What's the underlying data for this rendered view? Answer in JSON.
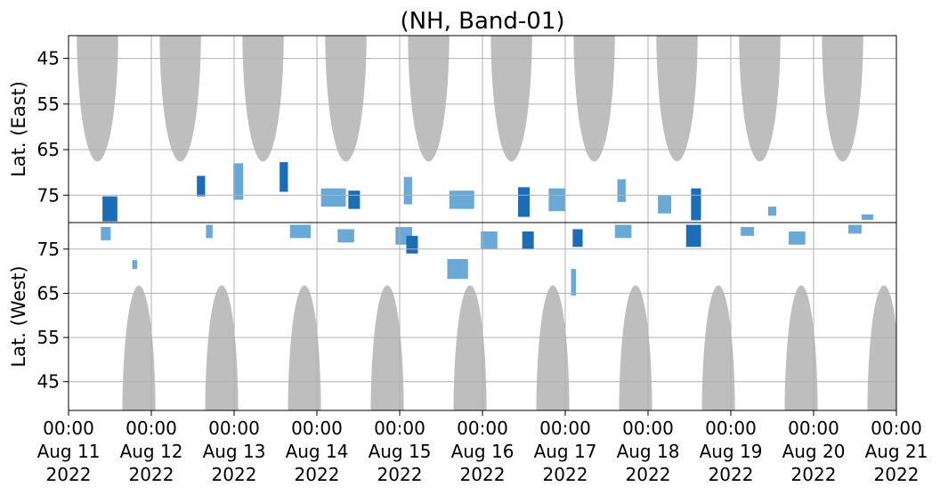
{
  "chart_data": {
    "type": "heatmap",
    "title": "(NH, Band-01)",
    "x_ticks": [
      {
        "time": "00:00",
        "date": "Aug 11",
        "year": "2022"
      },
      {
        "time": "00:00",
        "date": "Aug 12",
        "year": "2022"
      },
      {
        "time": "00:00",
        "date": "Aug 13",
        "year": "2022"
      },
      {
        "time": "00:00",
        "date": "Aug 14",
        "year": "2022"
      },
      {
        "time": "00:00",
        "date": "Aug 15",
        "year": "2022"
      },
      {
        "time": "00:00",
        "date": "Aug 16",
        "year": "2022"
      },
      {
        "time": "00:00",
        "date": "Aug 17",
        "year": "2022"
      },
      {
        "time": "00:00",
        "date": "Aug 18",
        "year": "2022"
      },
      {
        "time": "00:00",
        "date": "Aug 19",
        "year": "2022"
      },
      {
        "time": "00:00",
        "date": "Aug 20",
        "year": "2022"
      },
      {
        "time": "00:00",
        "date": "Aug 21",
        "year": "2022"
      }
    ],
    "grid": true,
    "colors": {
      "coverage_gap": "#bebebe",
      "light": "#6aa9d6",
      "dark": "#1d6db6",
      "grid": "#b0b0b0"
    },
    "panels": [
      {
        "name": "east",
        "ylabel": "Lat. (East)",
        "ylim": [
          40,
          81
        ],
        "y_ticks": [
          45,
          55,
          65,
          75
        ],
        "direction": "down",
        "gaps": [
          {
            "center_day": 0.35,
            "min_lat": 67.6,
            "width_days": 0.5
          },
          {
            "center_day": 1.35,
            "min_lat": 67.6,
            "width_days": 0.5
          },
          {
            "center_day": 2.35,
            "min_lat": 67.6,
            "width_days": 0.5
          },
          {
            "center_day": 3.35,
            "min_lat": 67.6,
            "width_days": 0.5
          },
          {
            "center_day": 4.35,
            "min_lat": 67.6,
            "width_days": 0.5
          },
          {
            "center_day": 5.35,
            "min_lat": 67.6,
            "width_days": 0.5
          },
          {
            "center_day": 6.35,
            "min_lat": 67.6,
            "width_days": 0.5
          },
          {
            "center_day": 7.35,
            "min_lat": 67.6,
            "width_days": 0.5
          },
          {
            "center_day": 8.35,
            "min_lat": 67.6,
            "width_days": 0.5
          },
          {
            "center_day": 9.35,
            "min_lat": 67.6,
            "width_days": 0.5
          }
        ],
        "events": [
          {
            "day": 0.5,
            "lat": 78.0,
            "w_days": 0.18,
            "h_lat": 5.5,
            "shade": "dark"
          },
          {
            "day": 1.6,
            "lat": 73.0,
            "w_days": 0.1,
            "h_lat": 4.5,
            "shade": "dark"
          },
          {
            "day": 2.05,
            "lat": 72.0,
            "w_days": 0.12,
            "h_lat": 8.0,
            "shade": "light"
          },
          {
            "day": 2.6,
            "lat": 71.0,
            "w_days": 0.1,
            "h_lat": 6.5,
            "shade": "dark"
          },
          {
            "day": 3.2,
            "lat": 75.5,
            "w_days": 0.3,
            "h_lat": 4.0,
            "shade": "light"
          },
          {
            "day": 3.45,
            "lat": 76.0,
            "w_days": 0.14,
            "h_lat": 4.0,
            "shade": "dark"
          },
          {
            "day": 4.1,
            "lat": 74.0,
            "w_days": 0.1,
            "h_lat": 6.0,
            "shade": "light"
          },
          {
            "day": 4.75,
            "lat": 76.0,
            "w_days": 0.3,
            "h_lat": 4.0,
            "shade": "light"
          },
          {
            "day": 5.5,
            "lat": 76.5,
            "w_days": 0.14,
            "h_lat": 6.5,
            "shade": "dark"
          },
          {
            "day": 5.9,
            "lat": 76.0,
            "w_days": 0.2,
            "h_lat": 5.0,
            "shade": "light"
          },
          {
            "day": 6.68,
            "lat": 74.0,
            "w_days": 0.1,
            "h_lat": 5.0,
            "shade": "light"
          },
          {
            "day": 7.2,
            "lat": 77.0,
            "w_days": 0.16,
            "h_lat": 4.0,
            "shade": "light"
          },
          {
            "day": 7.58,
            "lat": 77.0,
            "w_days": 0.12,
            "h_lat": 7.0,
            "shade": "dark"
          },
          {
            "day": 8.5,
            "lat": 78.5,
            "w_days": 0.1,
            "h_lat": 2.0,
            "shade": "light"
          },
          {
            "day": 9.65,
            "lat": 79.8,
            "w_days": 0.14,
            "h_lat": 1.2,
            "shade": "light"
          }
        ]
      },
      {
        "name": "west",
        "ylabel": "Lat. (West)",
        "ylim": [
          38.5,
          81
        ],
        "y_ticks": [
          45,
          55,
          65,
          75
        ],
        "direction": "up",
        "gaps": [
          {
            "center_day": 0.85,
            "min_lat": 66.8,
            "width_days": 0.4
          },
          {
            "center_day": 1.85,
            "min_lat": 66.8,
            "width_days": 0.4
          },
          {
            "center_day": 2.85,
            "min_lat": 66.8,
            "width_days": 0.4
          },
          {
            "center_day": 3.85,
            "min_lat": 66.8,
            "width_days": 0.4
          },
          {
            "center_day": 4.85,
            "min_lat": 66.8,
            "width_days": 0.4
          },
          {
            "center_day": 5.85,
            "min_lat": 66.8,
            "width_days": 0.4
          },
          {
            "center_day": 6.85,
            "min_lat": 66.8,
            "width_days": 0.4
          },
          {
            "center_day": 7.85,
            "min_lat": 66.8,
            "width_days": 0.4
          },
          {
            "center_day": 8.85,
            "min_lat": 66.8,
            "width_days": 0.4
          },
          {
            "center_day": 9.85,
            "min_lat": 66.8,
            "width_days": 0.4
          }
        ],
        "events": [
          {
            "day": 0.45,
            "lat": 78.5,
            "w_days": 0.12,
            "h_lat": 3.0,
            "shade": "light"
          },
          {
            "day": 0.8,
            "lat": 71.5,
            "w_days": 0.06,
            "h_lat": 2.0,
            "shade": "light"
          },
          {
            "day": 1.7,
            "lat": 79.0,
            "w_days": 0.08,
            "h_lat": 3.0,
            "shade": "light"
          },
          {
            "day": 2.8,
            "lat": 79.0,
            "w_days": 0.25,
            "h_lat": 3.0,
            "shade": "light"
          },
          {
            "day": 3.35,
            "lat": 78.0,
            "w_days": 0.2,
            "h_lat": 3.0,
            "shade": "light"
          },
          {
            "day": 4.05,
            "lat": 78.0,
            "w_days": 0.2,
            "h_lat": 4.0,
            "shade": "light"
          },
          {
            "day": 4.15,
            "lat": 76.0,
            "w_days": 0.14,
            "h_lat": 4.0,
            "shade": "dark"
          },
          {
            "day": 4.7,
            "lat": 70.5,
            "w_days": 0.25,
            "h_lat": 4.5,
            "shade": "light"
          },
          {
            "day": 5.08,
            "lat": 77.0,
            "w_days": 0.2,
            "h_lat": 4.0,
            "shade": "light"
          },
          {
            "day": 5.55,
            "lat": 77.0,
            "w_days": 0.14,
            "h_lat": 4.0,
            "shade": "dark"
          },
          {
            "day": 6.15,
            "lat": 77.5,
            "w_days": 0.12,
            "h_lat": 4.0,
            "shade": "dark"
          },
          {
            "day": 6.1,
            "lat": 67.5,
            "w_days": 0.06,
            "h_lat": 6.0,
            "shade": "light"
          },
          {
            "day": 6.7,
            "lat": 79.0,
            "w_days": 0.2,
            "h_lat": 3.0,
            "shade": "light"
          },
          {
            "day": 7.55,
            "lat": 78.0,
            "w_days": 0.18,
            "h_lat": 5.0,
            "shade": "dark"
          },
          {
            "day": 8.2,
            "lat": 79.0,
            "w_days": 0.16,
            "h_lat": 2.0,
            "shade": "light"
          },
          {
            "day": 8.8,
            "lat": 77.5,
            "w_days": 0.2,
            "h_lat": 3.0,
            "shade": "light"
          },
          {
            "day": 9.5,
            "lat": 79.5,
            "w_days": 0.16,
            "h_lat": 2.0,
            "shade": "light"
          }
        ]
      }
    ]
  }
}
